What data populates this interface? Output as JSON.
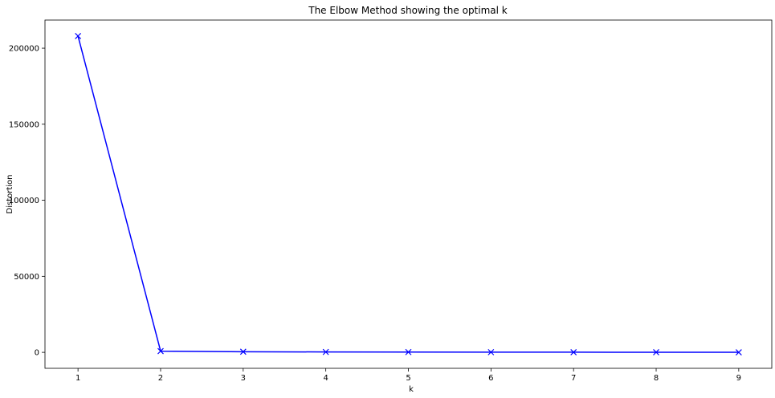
{
  "chart_data": {
    "type": "line",
    "title": "The Elbow Method showing the optimal k",
    "xlabel": "k",
    "ylabel": "Distortion",
    "x": [
      1,
      2,
      3,
      4,
      5,
      6,
      7,
      8,
      9
    ],
    "series": [
      {
        "values": [
          208000,
          800,
          400,
          250,
          180,
          120,
          90,
          60,
          40
        ],
        "color": "#0000ff",
        "marker": "x"
      }
    ],
    "xticks": [
      "1",
      "2",
      "3",
      "4",
      "5",
      "6",
      "7",
      "8",
      "9"
    ],
    "yticks": [
      "0",
      "50000",
      "100000",
      "150000",
      "200000"
    ],
    "ytick_values": [
      0,
      50000,
      100000,
      150000,
      200000
    ],
    "xlim": [
      0.6,
      9.4
    ],
    "ylim": [
      -10500,
      218500
    ],
    "grid": false,
    "legend": "none"
  }
}
